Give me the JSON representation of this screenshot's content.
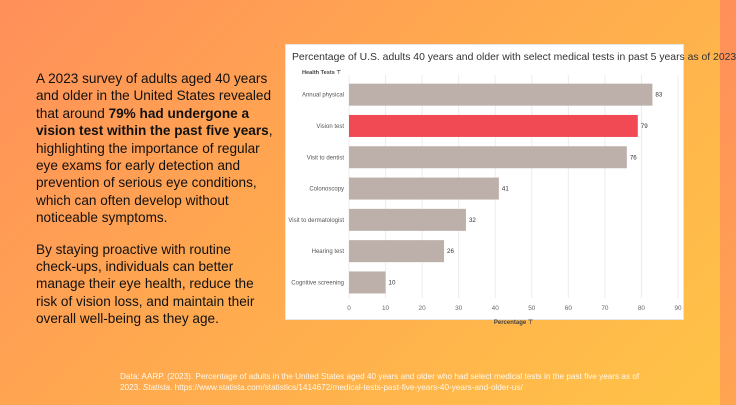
{
  "slide": {
    "para1_pre": "A 2023 survey of adults aged 40 years and older in the United States revealed that around ",
    "para1_bold": "79% had undergone a vision test within the past five years",
    "para1_post": ", highlighting the importance of regular eye exams for early detection and prevention of serious eye conditions, which can often develop without noticeable symptoms.",
    "para2": "By staying proactive with routine check-ups, individuals can better manage their eye health, reduce the risk of vision loss, and maintain their overall well-being as they age.",
    "source_pre": "Data: AARP. (2023). Percentage of adults in the United States aged 40 years and older who had select medical tests in the past five years as of 2023. ",
    "source_italic": "Statista",
    "source_post": ". https://www.statista.com/statistics/1414672/medical-tests-past-five-years-40-years-and-older-us/"
  },
  "chart_data": {
    "type": "bar",
    "orientation": "horizontal",
    "title": "Percentage of U.S. adults 40 years and older with select medical tests in past 5 years as of 2023",
    "ylabel": "Health Tests",
    "xlabel": "Percentage",
    "categories": [
      "Annual physical",
      "Vision test",
      "Visit to dentist",
      "Colonoscopy",
      "Visit to dermatologist",
      "Hearing test",
      "Cognitive screening"
    ],
    "values": [
      83,
      79,
      76,
      41,
      32,
      26,
      10
    ],
    "xlim": [
      0,
      90
    ],
    "xticks": [
      0,
      10,
      20,
      30,
      40,
      50,
      60,
      70,
      80,
      90
    ],
    "highlight_category": "Vision test",
    "colors": {
      "default": "#bdb0aa",
      "highlight": "#f24a55"
    },
    "grid": true
  }
}
